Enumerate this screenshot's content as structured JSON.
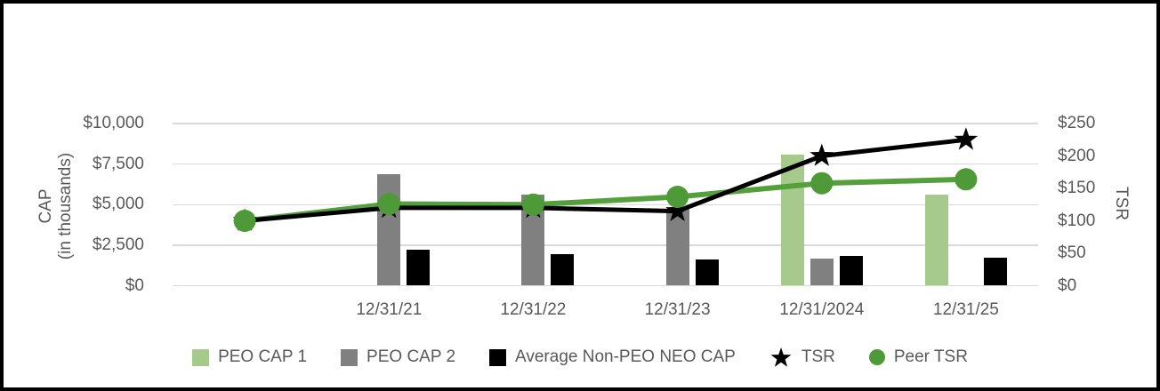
{
  "axes": {
    "left_title_line1": "CAP",
    "left_title_line2": "(in thousands)",
    "right_title": "TSR",
    "left_ticks": [
      "$10,000",
      "$7,500",
      "$5,000",
      "$2,500",
      "$0"
    ],
    "right_ticks": [
      "$250",
      "$200",
      "$150",
      "$100",
      "$50",
      "$0"
    ]
  },
  "legend": [
    {
      "label": "PEO CAP 1",
      "marker": "square",
      "color": "#a6c98c"
    },
    {
      "label": "PEO CAP 2",
      "marker": "square",
      "color": "#808080"
    },
    {
      "label": "Average Non-PEO NEO CAP",
      "marker": "square",
      "color": "#000000"
    },
    {
      "label": "TSR",
      "marker": "star",
      "color": "#000000"
    },
    {
      "label": "Peer TSR",
      "marker": "circle",
      "color": "#4f9a38"
    }
  ],
  "colors": {
    "peo_cap_1": "#a6c98c",
    "peo_cap_2": "#808080",
    "avg_non_peo_neo_cap": "#000000",
    "tsr_line": "#000000",
    "peer_tsr_line": "#55a03c",
    "grid": "#d9d9d9",
    "axis_text": "#595959"
  },
  "chart_data": {
    "type": "combo bar+line (pay versus performance)",
    "categories": [
      "",
      "12/31/21",
      "12/31/22",
      "12/31/23",
      "12/31/2024",
      "12/31/25"
    ],
    "bar_series": [
      {
        "name": "PEO CAP 1",
        "axis": "left",
        "color": "#a6c98c",
        "values": [
          null,
          null,
          null,
          null,
          8100,
          5600
        ]
      },
      {
        "name": "PEO CAP 2",
        "axis": "left",
        "color": "#808080",
        "values": [
          null,
          6900,
          5600,
          4750,
          1650,
          null
        ]
      },
      {
        "name": "Average Non-PEO NEO CAP",
        "axis": "left",
        "color": "#000000",
        "values": [
          null,
          2200,
          1950,
          1600,
          1850,
          1750
        ]
      }
    ],
    "line_series": [
      {
        "name": "TSR",
        "axis": "right",
        "color": "#000000",
        "marker": "star",
        "values": [
          100,
          120,
          120,
          115,
          200,
          225
        ]
      },
      {
        "name": "Peer TSR",
        "axis": "right",
        "color": "#55a03c",
        "marker": "circle",
        "values": [
          100,
          126,
          125,
          137,
          158,
          164
        ]
      }
    ],
    "left_axis": {
      "title": "CAP (in thousands)",
      "min": 0,
      "max": 10000,
      "tick_step": 2500,
      "tick_format": "$#,##0"
    },
    "right_axis": {
      "title": "TSR",
      "min": 0,
      "max": 250,
      "tick_step": 50,
      "tick_format": "$#,##0"
    },
    "grid": true,
    "legend_position": "bottom"
  }
}
